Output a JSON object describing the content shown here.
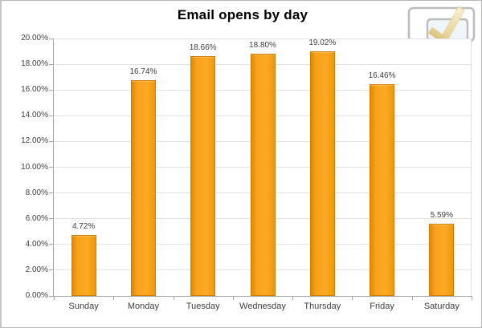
{
  "title": "Email opens by day",
  "logo": {
    "name": "speech-bubbles-with-checkmark",
    "outline_color": "#bcbcbc",
    "bubble_fill": "#eef6f9",
    "check_light": "#f2e4b8",
    "check_dark": "#d2b269"
  },
  "colors": {
    "bar_fill": "#f9a11d",
    "bar_border": "#cc7e00",
    "gridline": "#e2e2e2",
    "axis": "#a6a6a6",
    "tick_text": "#3f3f3f",
    "title_text": "#000000",
    "background": "#ffffff",
    "window_border": "#b9b9b9"
  },
  "chart_data": {
    "type": "bar",
    "title": "Email opens by day",
    "categories": [
      "Sunday",
      "Monday",
      "Tuesday",
      "Wednesday",
      "Thursday",
      "Friday",
      "Saturday"
    ],
    "values": [
      4.72,
      16.74,
      18.66,
      18.8,
      19.02,
      16.46,
      5.59
    ],
    "value_labels": [
      "4.72%",
      "16.74%",
      "18.66%",
      "18.80%",
      "19.02%",
      "16.46%",
      "5.59%"
    ],
    "xlabel": "",
    "ylabel": "",
    "ylim": [
      0,
      20
    ],
    "ytick_step": 2,
    "yticks": [
      "0.00%",
      "2.00%",
      "4.00%",
      "6.00%",
      "8.00%",
      "10.00%",
      "12.00%",
      "14.00%",
      "16.00%",
      "18.00%",
      "20.00%"
    ],
    "grid": true,
    "legend": "none"
  }
}
